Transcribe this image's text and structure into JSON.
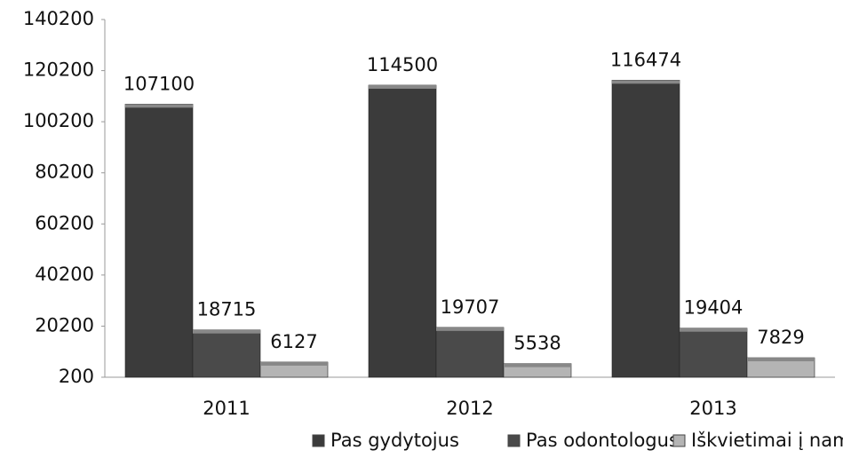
{
  "chart_data": {
    "type": "bar",
    "categories": [
      "2011",
      "2012",
      "2013"
    ],
    "series": [
      {
        "name": "Pas gydytojus",
        "color": "#3b3b3b",
        "values": [
          107100,
          114500,
          116474
        ]
      },
      {
        "name": "Pas odontologus",
        "color": "#4a4a4a",
        "values": [
          18715,
          19707,
          19404
        ]
      },
      {
        "name": "Iškvietimai į namus",
        "color": "#b4b4b4",
        "values": [
          6127,
          5538,
          7829
        ]
      }
    ],
    "ylim": [
      200,
      140200
    ],
    "yticks": [
      200,
      20200,
      40200,
      60200,
      80200,
      100200,
      120200,
      140200
    ],
    "legend": "bottom"
  }
}
